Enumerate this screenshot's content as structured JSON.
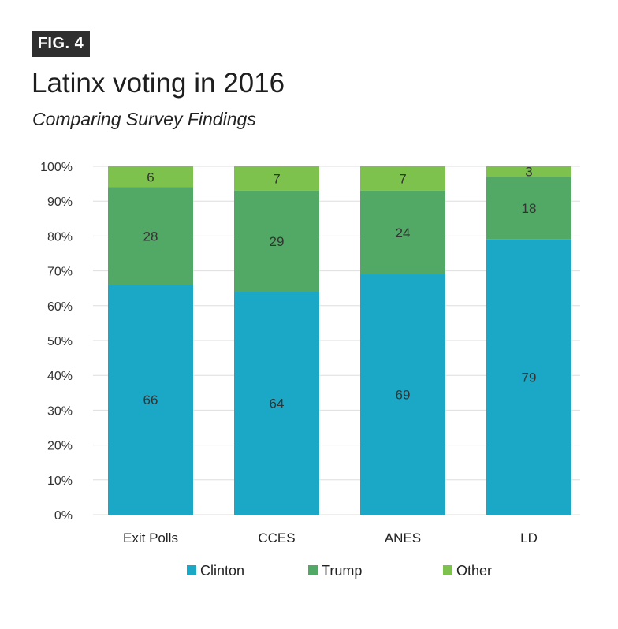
{
  "badge": "FIG. 4",
  "title": "Latinx voting in 2016",
  "subtitle": "Comparing Survey Findings",
  "colors": {
    "Clinton": "#1aa8c6",
    "Trump": "#52a865",
    "Other": "#7cc24d",
    "grid": "#dedede",
    "background": "#ffffff"
  },
  "chart_data": {
    "type": "bar",
    "stacked": true,
    "categories": [
      "Exit Polls",
      "CCES",
      "ANES",
      "LD"
    ],
    "series": [
      {
        "name": "Clinton",
        "values": [
          66,
          64,
          69,
          79
        ]
      },
      {
        "name": "Trump",
        "values": [
          28,
          29,
          24,
          18
        ]
      },
      {
        "name": "Other",
        "values": [
          6,
          7,
          7,
          3
        ]
      }
    ],
    "ylim": [
      0,
      100
    ],
    "yticks": [
      "0%",
      "10%",
      "20%",
      "30%",
      "40%",
      "50%",
      "60%",
      "70%",
      "80%",
      "90%",
      "100%"
    ],
    "grid": true,
    "legend": "bottom"
  }
}
